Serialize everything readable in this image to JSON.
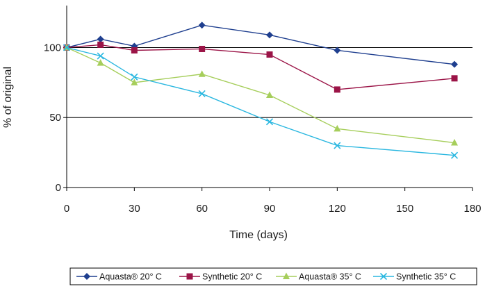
{
  "chart_data": {
    "type": "line",
    "title": "",
    "xlabel": "Time (days)",
    "ylabel": "% of original",
    "xlim": [
      0,
      180
    ],
    "ylim": [
      0,
      130
    ],
    "x_ticks": [
      0,
      30,
      60,
      90,
      120,
      150,
      180
    ],
    "y_ticks": [
      0,
      50,
      100
    ],
    "x_tick_labels": [
      "0",
      "30",
      "60",
      "90",
      "120",
      "150",
      "180"
    ],
    "y_tick_labels": [
      "0",
      "50",
      "100"
    ],
    "grid": "horizontal at 50 and 100",
    "legend_placement": "bottom",
    "series": [
      {
        "name": "Aquasta® 20° C",
        "color": "#1f3f8f",
        "marker": "diamond",
        "x": [
          0,
          15,
          30,
          60,
          90,
          120,
          172
        ],
        "y": [
          100,
          106,
          101,
          116,
          109,
          98,
          88
        ]
      },
      {
        "name": "Synthetic 20° C",
        "color": "#9b1447",
        "marker": "square",
        "x": [
          0,
          15,
          30,
          60,
          90,
          120,
          172
        ],
        "y": [
          100,
          102,
          98,
          99,
          95,
          70,
          78
        ]
      },
      {
        "name": "Aquasta® 35° C",
        "color": "#a6ce5b",
        "marker": "triangle",
        "x": [
          0,
          15,
          30,
          60,
          90,
          120,
          172
        ],
        "y": [
          100,
          89,
          75,
          81,
          66,
          42,
          32
        ]
      },
      {
        "name": "Synthetic 35° C",
        "color": "#2ab7e0",
        "marker": "x",
        "x": [
          0,
          15,
          30,
          60,
          90,
          120,
          172
        ],
        "y": [
          100,
          94,
          79,
          67,
          47,
          30,
          23
        ]
      }
    ]
  }
}
